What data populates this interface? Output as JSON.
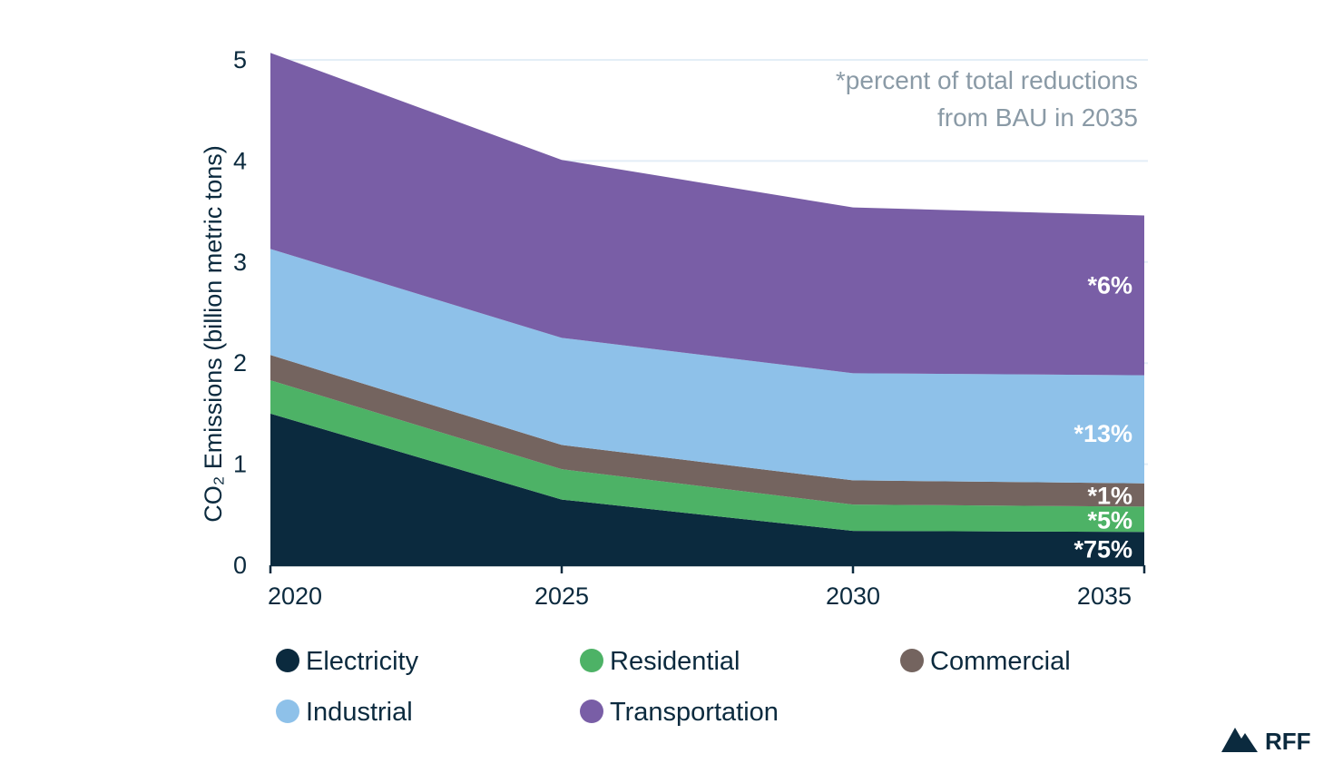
{
  "chart_data": {
    "type": "area",
    "stacked": true,
    "x": [
      2020,
      2025,
      2030,
      2035
    ],
    "xticks": [
      "2020",
      "2025",
      "2030",
      "2035"
    ],
    "yticks": [
      "0",
      "1",
      "2",
      "3",
      "4",
      "5"
    ],
    "ylim": [
      0,
      5
    ],
    "xlim": [
      2020,
      2035
    ],
    "ylabel": "CO₂ Emissions (billion metric tons)",
    "grid": true,
    "legend_position": "bottom",
    "annotation": [
      "*percent of total reductions",
      "from BAU in 2035"
    ],
    "series": [
      {
        "name": "Electricity",
        "color": "#0b2a3e",
        "values": [
          1.5,
          0.65,
          0.34,
          0.33
        ],
        "label": "*75%"
      },
      {
        "name": "Residential",
        "color": "#4db266",
        "values": [
          0.33,
          0.3,
          0.26,
          0.25
        ],
        "label": "*5%"
      },
      {
        "name": "Commercial",
        "color": "#74645f",
        "values": [
          0.25,
          0.24,
          0.24,
          0.23
        ],
        "label": "*1%"
      },
      {
        "name": "Industrial",
        "color": "#8ec1e9",
        "values": [
          1.05,
          1.06,
          1.06,
          1.07
        ],
        "label": "*13%"
      },
      {
        "name": "Transportation",
        "color": "#795ea6",
        "values": [
          1.94,
          1.76,
          1.64,
          1.58
        ],
        "label": "*6%"
      }
    ]
  },
  "brand": {
    "logo_text": "RFF",
    "logo_icon": "mountain-icon",
    "color": "#0b2a3e"
  }
}
